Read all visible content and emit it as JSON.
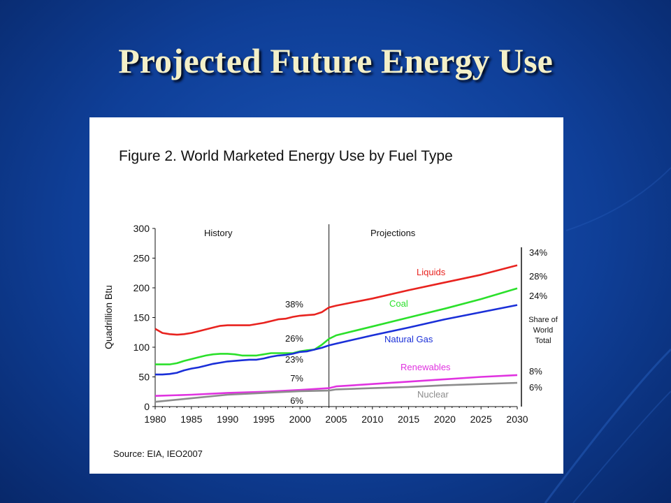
{
  "slide": {
    "title": "Projected Future Energy Use"
  },
  "chart_data": {
    "type": "line",
    "title": "Figure 2. World Marketed Energy Use by Fuel Type",
    "ylabel": "Quadrillion Btu",
    "xlabel": "",
    "ylim": [
      0,
      300
    ],
    "xlim": [
      1980,
      2030
    ],
    "yticks": [
      "0",
      "50",
      "100",
      "150",
      "200",
      "250",
      "300"
    ],
    "xticks": [
      "1980",
      "1985",
      "1990",
      "1995",
      "2000",
      "2005",
      "2010",
      "2015",
      "2020",
      "2025",
      "2030"
    ],
    "grid": false,
    "divider_year": 2004,
    "annotations": {
      "history": "History",
      "projections": "Projections",
      "share_label": [
        "Share of",
        "World",
        "Total"
      ],
      "source": "Source:  EIA, IEO2007"
    },
    "series": [
      {
        "name": "Liquids",
        "color": "#e8231f",
        "share_2004": "38%",
        "share_2030": "34%",
        "points": [
          [
            1980,
            131
          ],
          [
            1981,
            124
          ],
          [
            1982,
            122
          ],
          [
            1983,
            121
          ],
          [
            1984,
            122
          ],
          [
            1985,
            124
          ],
          [
            1986,
            127
          ],
          [
            1987,
            130
          ],
          [
            1988,
            133
          ],
          [
            1989,
            136
          ],
          [
            1990,
            137
          ],
          [
            1991,
            137
          ],
          [
            1992,
            137
          ],
          [
            1993,
            137
          ],
          [
            1994,
            139
          ],
          [
            1995,
            141
          ],
          [
            1996,
            144
          ],
          [
            1997,
            147
          ],
          [
            1998,
            148
          ],
          [
            1999,
            151
          ],
          [
            2000,
            153
          ],
          [
            2001,
            154
          ],
          [
            2002,
            155
          ],
          [
            2003,
            159
          ],
          [
            2004,
            167
          ],
          [
            2005,
            170
          ],
          [
            2010,
            182
          ],
          [
            2015,
            196
          ],
          [
            2020,
            209
          ],
          [
            2025,
            222
          ],
          [
            2030,
            238
          ]
        ]
      },
      {
        "name": "Coal",
        "color": "#2be02b",
        "share_2004": "26%",
        "share_2030": "28%",
        "points": [
          [
            1980,
            71
          ],
          [
            1981,
            71
          ],
          [
            1982,
            71
          ],
          [
            1983,
            73
          ],
          [
            1984,
            77
          ],
          [
            1985,
            80
          ],
          [
            1986,
            83
          ],
          [
            1987,
            86
          ],
          [
            1988,
            88
          ],
          [
            1989,
            89
          ],
          [
            1990,
            89
          ],
          [
            1991,
            88
          ],
          [
            1992,
            86
          ],
          [
            1993,
            86
          ],
          [
            1994,
            86
          ],
          [
            1995,
            88
          ],
          [
            1996,
            90
          ],
          [
            1997,
            90
          ],
          [
            1998,
            90
          ],
          [
            1999,
            90
          ],
          [
            2000,
            93
          ],
          [
            2001,
            95
          ],
          [
            2002,
            96
          ],
          [
            2003,
            104
          ],
          [
            2004,
            114
          ],
          [
            2005,
            120
          ],
          [
            2010,
            135
          ],
          [
            2015,
            150
          ],
          [
            2020,
            165
          ],
          [
            2025,
            181
          ],
          [
            2030,
            199
          ]
        ]
      },
      {
        "name": "Natural Gas",
        "color": "#1a2fd8",
        "share_2004": "23%",
        "share_2030": "24%",
        "points": [
          [
            1980,
            54
          ],
          [
            1981,
            54
          ],
          [
            1982,
            55
          ],
          [
            1983,
            57
          ],
          [
            1984,
            61
          ],
          [
            1985,
            64
          ],
          [
            1986,
            66
          ],
          [
            1987,
            69
          ],
          [
            1988,
            72
          ],
          [
            1989,
            74
          ],
          [
            1990,
            76
          ],
          [
            1991,
            77
          ],
          [
            1992,
            78
          ],
          [
            1993,
            79
          ],
          [
            1994,
            79
          ],
          [
            1995,
            81
          ],
          [
            1996,
            84
          ],
          [
            1997,
            86
          ],
          [
            1998,
            87
          ],
          [
            1999,
            89
          ],
          [
            2000,
            92
          ],
          [
            2001,
            93
          ],
          [
            2002,
            96
          ],
          [
            2003,
            99
          ],
          [
            2004,
            103
          ],
          [
            2005,
            106
          ],
          [
            2010,
            120
          ],
          [
            2015,
            133
          ],
          [
            2020,
            147
          ],
          [
            2025,
            159
          ],
          [
            2030,
            171
          ]
        ]
      },
      {
        "name": "Renewables",
        "color": "#e033e0",
        "share_2004": "7%",
        "share_2030": "8%",
        "points": [
          [
            1980,
            18
          ],
          [
            1985,
            20
          ],
          [
            1990,
            23
          ],
          [
            1995,
            25
          ],
          [
            2000,
            28
          ],
          [
            2004,
            31
          ],
          [
            2005,
            34
          ],
          [
            2010,
            38
          ],
          [
            2015,
            42
          ],
          [
            2020,
            46
          ],
          [
            2025,
            50
          ],
          [
            2030,
            53
          ]
        ]
      },
      {
        "name": "Nuclear",
        "color": "#8c8c8c",
        "share_2004": "6%",
        "share_2030": "6%",
        "points": [
          [
            1980,
            8
          ],
          [
            1985,
            14
          ],
          [
            1990,
            20
          ],
          [
            1995,
            23
          ],
          [
            2000,
            26
          ],
          [
            2004,
            27
          ],
          [
            2005,
            29
          ],
          [
            2010,
            31
          ],
          [
            2015,
            33
          ],
          [
            2020,
            36
          ],
          [
            2025,
            38
          ],
          [
            2030,
            40
          ]
        ]
      }
    ]
  }
}
